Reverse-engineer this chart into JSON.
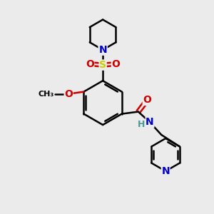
{
  "bg_color": "#ebebeb",
  "atom_colors": {
    "C": "#000000",
    "N": "#0000cc",
    "O": "#cc0000",
    "S": "#cccc00",
    "H": "#4a9999"
  },
  "bond_color": "#000000",
  "bond_width": 1.8,
  "font_size_atom": 10,
  "font_size_small": 9,
  "figsize": [
    3.0,
    3.0
  ],
  "dpi": 100
}
